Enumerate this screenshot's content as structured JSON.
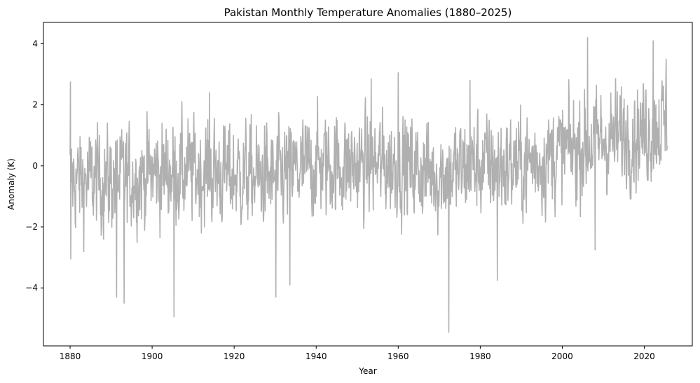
{
  "chart_data": {
    "type": "line",
    "title": "Pakistan Monthly Temperature Anomalies (1880–2025)",
    "xlabel": "Year",
    "ylabel": "Anomaly (K)",
    "xlim": [
      1873.5,
      2031.7
    ],
    "ylim": [
      -5.9,
      4.7
    ],
    "xticks": [
      1880,
      1900,
      1920,
      1940,
      1960,
      1980,
      2000,
      2020
    ],
    "yticks": [
      -4,
      -2,
      0,
      2,
      4
    ],
    "xtick_labels": [
      "1880",
      "1900",
      "1920",
      "1940",
      "1960",
      "1980",
      "2000",
      "2020"
    ],
    "ytick_labels": [
      "−4",
      "−2",
      "0",
      "2",
      "4"
    ],
    "grid": false,
    "line_color": "#b0b0b0",
    "series": [
      {
        "x_start": 1880.0,
        "x_end": 2025.6,
        "resolution": "monthly",
        "trend_points": [
          [
            1880,
            -0.45
          ],
          [
            1890,
            -0.5
          ],
          [
            1900,
            -0.25
          ],
          [
            1910,
            -0.2
          ],
          [
            1920,
            -0.3
          ],
          [
            1930,
            -0.4
          ],
          [
            1940,
            0.05
          ],
          [
            1950,
            0.0
          ],
          [
            1960,
            0.05
          ],
          [
            1970,
            -0.3
          ],
          [
            1980,
            0.05
          ],
          [
            1990,
            0.0
          ],
          [
            2000,
            0.45
          ],
          [
            2010,
            0.85
          ],
          [
            2020,
            1.1
          ],
          [
            2025,
            1.45
          ]
        ],
        "extremes": [
          [
            1880.1,
            2.75
          ],
          [
            1880.2,
            -3.05
          ],
          [
            1891.3,
            -4.3
          ],
          [
            1893.2,
            -4.5
          ],
          [
            1905.3,
            -4.95
          ],
          [
            1914.0,
            2.4
          ],
          [
            1930.2,
            -4.3
          ],
          [
            1933.6,
            -3.9
          ],
          [
            1953.4,
            2.85
          ],
          [
            1960.0,
            3.05
          ],
          [
            1972.3,
            -5.45
          ],
          [
            1977.5,
            2.8
          ],
          [
            1984.2,
            -3.75
          ],
          [
            2006.2,
            4.2
          ],
          [
            2008.0,
            -2.75
          ],
          [
            2022.2,
            4.1
          ],
          [
            2025.3,
            3.5
          ]
        ]
      }
    ]
  }
}
